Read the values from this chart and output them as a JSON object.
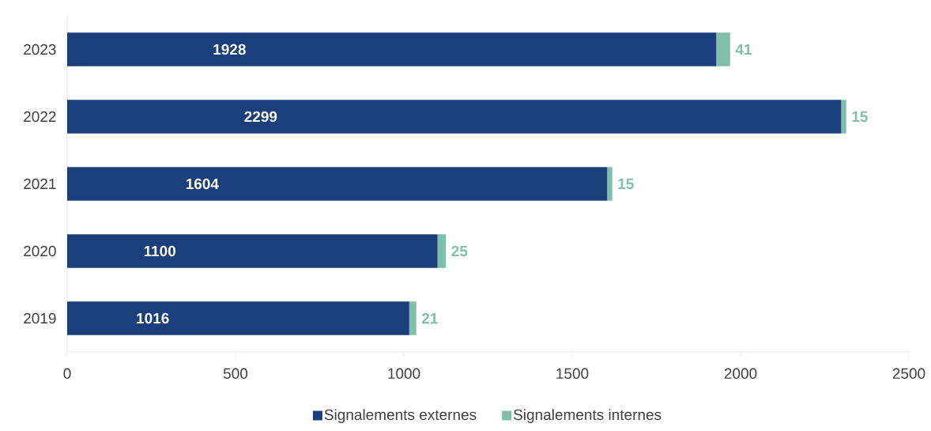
{
  "chart_data": {
    "type": "bar",
    "orientation": "horizontal",
    "stacked": true,
    "categories": [
      "2023",
      "2022",
      "2021",
      "2020",
      "2019"
    ],
    "series": [
      {
        "name": "Signalements externes",
        "color": "#1b3f7a",
        "values": [
          1928,
          2299,
          1604,
          1100,
          1016
        ]
      },
      {
        "name": "Signalements internes",
        "color": "#80c0ab",
        "values": [
          41,
          15,
          15,
          25,
          21
        ]
      }
    ],
    "xlim": [
      0,
      2500
    ],
    "xticks": [
      0,
      500,
      1000,
      1500,
      2000,
      2500
    ],
    "data_labels": true,
    "legend": "bottom",
    "grid": false
  }
}
